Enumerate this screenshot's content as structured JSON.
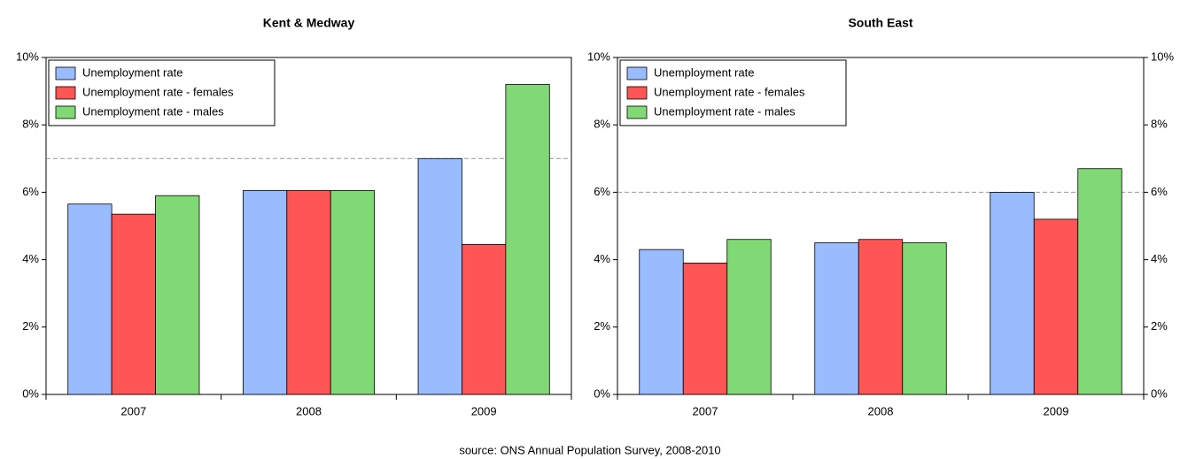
{
  "chart_data": [
    {
      "type": "bar",
      "title": "Kent & Medway",
      "categories": [
        "2007",
        "2008",
        "2009"
      ],
      "series": [
        {
          "name": "Unemployment rate",
          "color": "#99bbff",
          "values": [
            5.65,
            6.05,
            7.0
          ]
        },
        {
          "name": "Unemployment rate - females",
          "color": "#ff5555",
          "values": [
            5.35,
            6.05,
            4.45
          ]
        },
        {
          "name": "Unemployment rate - males",
          "color": "#80d975",
          "values": [
            5.9,
            6.05,
            9.2
          ]
        }
      ],
      "ylim": [
        0,
        10
      ],
      "yticks": [
        {
          "value": 0,
          "label": "0%"
        },
        {
          "value": 2,
          "label": "2%"
        },
        {
          "value": 4,
          "label": "4%"
        },
        {
          "value": 6,
          "label": "6%"
        },
        {
          "value": 8,
          "label": "8%"
        },
        {
          "value": 10,
          "label": "10%"
        }
      ],
      "reference_line": 7,
      "legend": "top-left",
      "right_axis_labels": false
    },
    {
      "type": "bar",
      "title": "South East",
      "categories": [
        "2007",
        "2008",
        "2009"
      ],
      "series": [
        {
          "name": "Unemployment rate",
          "color": "#99bbff",
          "values": [
            4.3,
            4.5,
            6.0
          ]
        },
        {
          "name": "Unemployment rate - females",
          "color": "#ff5555",
          "values": [
            3.9,
            4.6,
            5.2
          ]
        },
        {
          "name": "Unemployment rate - males",
          "color": "#80d975",
          "values": [
            4.6,
            4.5,
            6.7
          ]
        }
      ],
      "ylim": [
        0,
        10
      ],
      "yticks": [
        {
          "value": 0,
          "label": "0%"
        },
        {
          "value": 2,
          "label": "2%"
        },
        {
          "value": 4,
          "label": "4%"
        },
        {
          "value": 6,
          "label": "6%"
        },
        {
          "value": 8,
          "label": "8%"
        },
        {
          "value": 10,
          "label": "10%"
        }
      ],
      "reference_line": 6,
      "legend": "top-left",
      "right_axis_labels": true
    }
  ],
  "source": "source: ONS Annual Population Survey, 2008-2010"
}
